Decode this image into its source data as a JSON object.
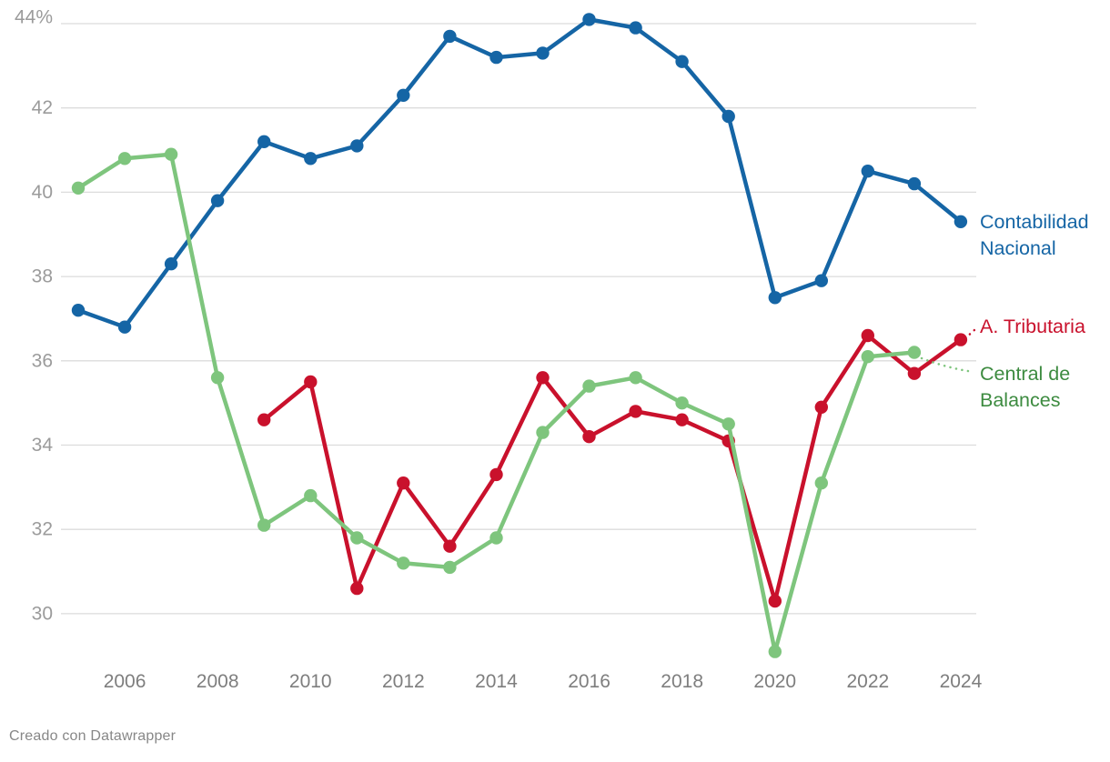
{
  "footer": {
    "credit": "Creado con Datawrapper"
  },
  "chart_data": {
    "type": "line",
    "title": "",
    "xlabel": "",
    "ylabel": "",
    "grid": "horizontal",
    "legend_position": "right-inline-at-line-ends",
    "x_range": [
      2005,
      2024
    ],
    "y_range": [
      29,
      44.5
    ],
    "colors": {
      "grid": "#dcdcdc",
      "y_tick_label": "#9b9b9b",
      "x_tick_label": "#7e7e7e"
    },
    "y_axis": {
      "ticks": [
        {
          "value": 44,
          "label": "44%"
        },
        {
          "value": 42,
          "label": "42"
        },
        {
          "value": 40,
          "label": "40"
        },
        {
          "value": 38,
          "label": "38"
        },
        {
          "value": 36,
          "label": "36"
        },
        {
          "value": 34,
          "label": "34"
        },
        {
          "value": 32,
          "label": "32"
        },
        {
          "value": 30,
          "label": "30"
        }
      ]
    },
    "x_axis": {
      "ticks": [
        2006,
        2008,
        2010,
        2012,
        2014,
        2016,
        2018,
        2020,
        2022,
        2024
      ]
    },
    "series": [
      {
        "name": "Contabilidad Nacional",
        "label_lines": [
          "Contabilidad",
          "Nacional"
        ],
        "color": "#1565a5",
        "points": [
          [
            2005,
            37.2
          ],
          [
            2006,
            36.8
          ],
          [
            2007,
            38.3
          ],
          [
            2008,
            39.8
          ],
          [
            2009,
            41.2
          ],
          [
            2010,
            40.8
          ],
          [
            2011,
            41.1
          ],
          [
            2012,
            42.3
          ],
          [
            2013,
            43.7
          ],
          [
            2014,
            43.2
          ],
          [
            2015,
            43.3
          ],
          [
            2016,
            44.1
          ],
          [
            2017,
            43.9
          ],
          [
            2018,
            43.1
          ],
          [
            2019,
            41.8
          ],
          [
            2020,
            37.5
          ],
          [
            2021,
            37.9
          ],
          [
            2022,
            40.5
          ],
          [
            2023,
            40.2
          ],
          [
            2024,
            39.3
          ]
        ]
      },
      {
        "name": "A. Tributaria",
        "label_lines": [
          "A. Tributaria"
        ],
        "color": "#c9112c",
        "points": [
          [
            2009,
            34.6
          ],
          [
            2010,
            35.5
          ],
          [
            2011,
            30.6
          ],
          [
            2012,
            33.1
          ],
          [
            2013,
            31.6
          ],
          [
            2014,
            33.3
          ],
          [
            2015,
            35.6
          ],
          [
            2016,
            34.2
          ],
          [
            2017,
            34.8
          ],
          [
            2018,
            34.6
          ],
          [
            2019,
            34.1
          ],
          [
            2020,
            30.3
          ],
          [
            2021,
            34.9
          ],
          [
            2022,
            36.6
          ],
          [
            2023,
            35.7
          ],
          [
            2024,
            36.5
          ]
        ]
      },
      {
        "name": "Central de Balances",
        "label_lines": [
          "Central de",
          "Balances"
        ],
        "color": "#7ec57d",
        "label_color": "#3d8b40",
        "points": [
          [
            2005,
            40.1
          ],
          [
            2006,
            40.8
          ],
          [
            2007,
            40.9
          ],
          [
            2008,
            35.6
          ],
          [
            2009,
            32.1
          ],
          [
            2010,
            32.8
          ],
          [
            2011,
            31.8
          ],
          [
            2012,
            31.2
          ],
          [
            2013,
            31.1
          ],
          [
            2014,
            31.8
          ],
          [
            2015,
            34.3
          ],
          [
            2016,
            35.4
          ],
          [
            2017,
            35.6
          ],
          [
            2018,
            35.0
          ],
          [
            2019,
            34.5
          ],
          [
            2020,
            29.1
          ],
          [
            2021,
            33.1
          ],
          [
            2022,
            36.1
          ],
          [
            2023,
            36.2
          ]
        ]
      }
    ]
  }
}
